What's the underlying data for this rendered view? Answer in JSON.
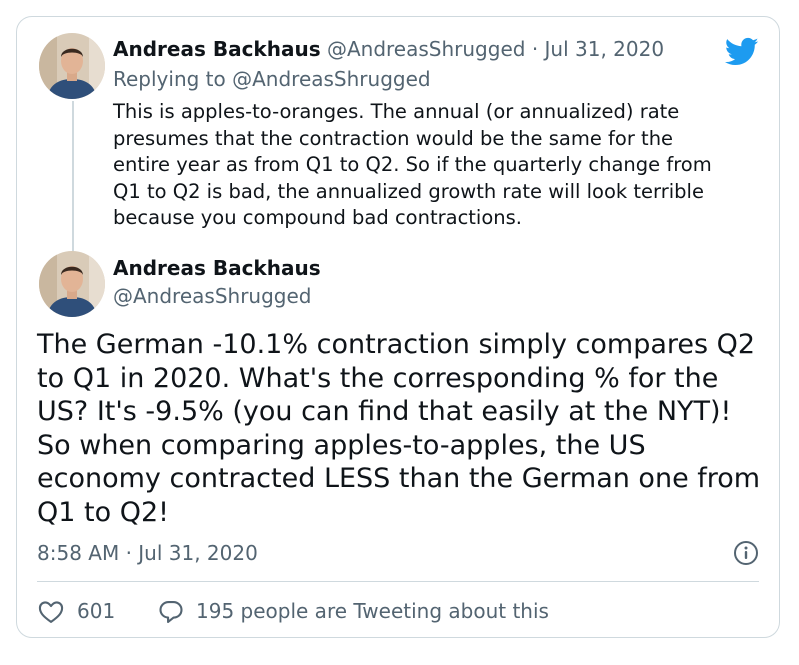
{
  "colors": {
    "twitter_blue": "#1d9bf0",
    "text": "#0f1419",
    "muted": "#536471",
    "border": "#cfd9de"
  },
  "parent_tweet": {
    "author_name": "Andreas Backhaus",
    "author_handle": "@AndreasShrugged",
    "separator": "·",
    "date": "Jul 31, 2020",
    "replying_to": "Replying to @AndreasShrugged",
    "text": "This is apples-to-oranges. The annual (or annualized) rate\npresumes that the contraction would be the same for the\nentire year as from Q1 to Q2. So if the quarterly change from\nQ1 to Q2 is bad, the annualized growth rate will look terrible\nbecause you compound bad contractions."
  },
  "main_tweet": {
    "author_name": "Andreas Backhaus",
    "author_handle": "@AndreasShrugged",
    "text": "The German -10.1% contraction simply compares Q2\nto Q1 in 2020. What's the corresponding % for the\nUS? It's -9.5% (you can find that easily at the NYT)!\nSo when comparing apples-to-apples, the US\neconomy contracted LESS than the German one from\nQ1 to Q2!",
    "timestamp": "8:58 AM · Jul 31, 2020"
  },
  "footer": {
    "like_count": "601",
    "reply_text": "195 people are Tweeting about this"
  },
  "icons": {
    "brand": "twitter-bird-icon",
    "info": "info-icon",
    "like": "heart-icon",
    "reply": "speech-bubble-icon"
  }
}
